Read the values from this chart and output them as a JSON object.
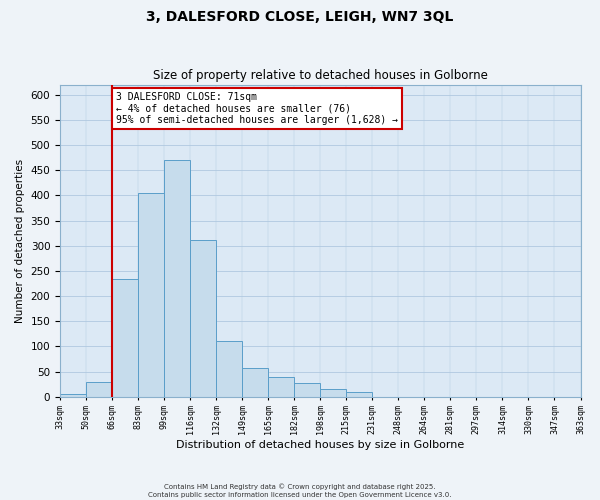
{
  "title": "3, DALESFORD CLOSE, LEIGH, WN7 3QL",
  "subtitle": "Size of property relative to detached houses in Golborne",
  "xlabel": "Distribution of detached houses by size in Golborne",
  "ylabel": "Number of detached properties",
  "bin_labels": [
    "33sqm",
    "50sqm",
    "66sqm",
    "83sqm",
    "99sqm",
    "116sqm",
    "132sqm",
    "149sqm",
    "165sqm",
    "182sqm",
    "198sqm",
    "215sqm",
    "231sqm",
    "248sqm",
    "264sqm",
    "281sqm",
    "297sqm",
    "314sqm",
    "330sqm",
    "347sqm",
    "363sqm"
  ],
  "bar_heights": [
    5,
    30,
    233,
    405,
    470,
    312,
    110,
    57,
    40,
    27,
    16,
    10,
    0,
    0,
    0,
    0,
    0,
    0,
    0,
    0
  ],
  "bar_color": "#c6dcec",
  "bar_edge_color": "#5a9ec9",
  "ylim": [
    0,
    620
  ],
  "yticks": [
    0,
    50,
    100,
    150,
    200,
    250,
    300,
    350,
    400,
    450,
    500,
    550,
    600
  ],
  "vline_x": 2.0,
  "vline_color": "#cc0000",
  "annotation_title": "3 DALESFORD CLOSE: 71sqm",
  "annotation_line1": "← 4% of detached houses are smaller (76)",
  "annotation_line2": "95% of semi-detached houses are larger (1,628) →",
  "annotation_box_facecolor": "#ffffff",
  "annotation_box_edgecolor": "#cc0000",
  "footer_line1": "Contains HM Land Registry data © Crown copyright and database right 2025.",
  "footer_line2": "Contains public sector information licensed under the Open Government Licence v3.0.",
  "fig_facecolor": "#eef3f8",
  "plot_bg_color": "#dce9f5",
  "grid_color": "#b0c8e0"
}
